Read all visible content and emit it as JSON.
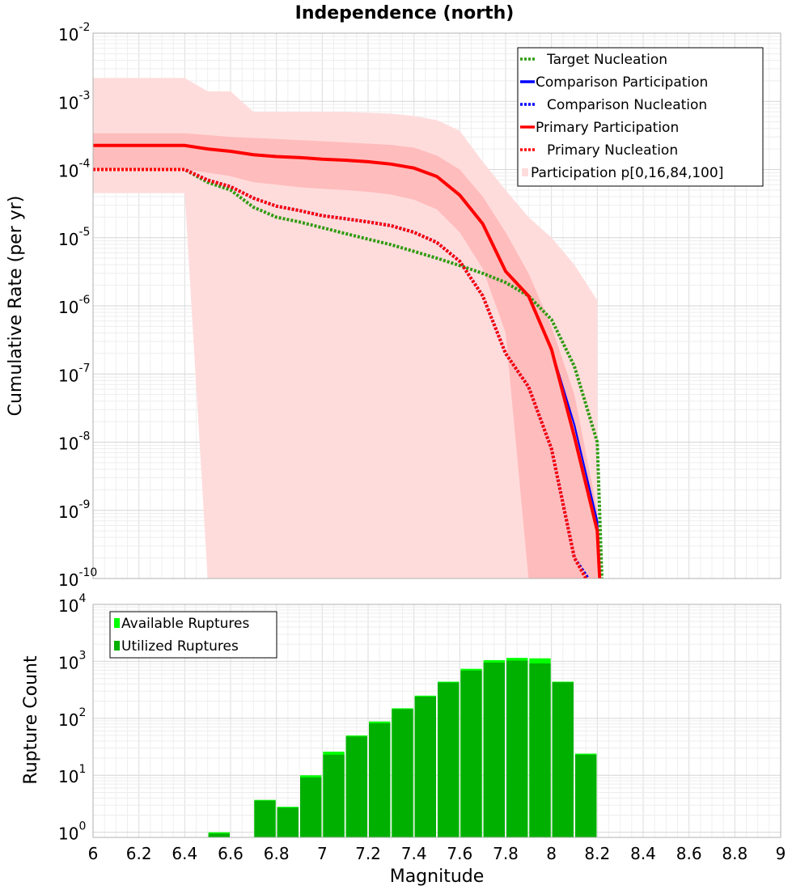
{
  "chart_data": [
    {
      "type": "line",
      "title": "Independence (north)",
      "ylabel": "Cumulative Rate (per yr)",
      "xlabel": "",
      "xlim": [
        6,
        9
      ],
      "ylim_log10": [
        -10,
        -2
      ],
      "yscale": "log",
      "y_tick_base": "10",
      "y_tick_exponents": [
        "-10",
        "-9",
        "-8",
        "-7",
        "-6",
        "-5",
        "-4",
        "-3",
        "-2"
      ],
      "legend_position": "top-right",
      "legend": [
        {
          "label": "Target Nucleation",
          "color": "#2e9b10",
          "style": "dotted"
        },
        {
          "label": "Comparison Participation",
          "color": "#0000ff",
          "style": "solid"
        },
        {
          "label": "Comparison Nucleation",
          "color": "#0000ff",
          "style": "dotted"
        },
        {
          "label": "Primary Participation",
          "color": "#ff0000",
          "style": "solid"
        },
        {
          "label": "Primary Nucleation",
          "color": "#ff0000",
          "style": "dotted"
        },
        {
          "label": "Participation p[0,16,84,100]",
          "color": "#ffdcdc",
          "style": "fill"
        }
      ],
      "series": [
        {
          "name": "Target Nucleation",
          "color": "#2e9b10",
          "style": "dotted",
          "x": [
            6.0,
            6.1,
            6.2,
            6.3,
            6.4,
            6.5,
            6.6,
            6.7,
            6.8,
            6.9,
            7.0,
            7.1,
            7.2,
            7.3,
            7.4,
            7.5,
            7.6,
            7.7,
            7.8,
            7.9,
            8.0,
            8.1,
            8.2,
            8.22
          ],
          "y": [
            0.0001,
            0.0001,
            0.0001,
            0.0001,
            0.0001,
            6.5e-05,
            5e-05,
            2.8e-05,
            2e-05,
            1.7e-05,
            1.4e-05,
            1.15e-05,
            9.5e-06,
            7.9e-06,
            6.3e-06,
            5e-06,
            3.9e-06,
            3e-06,
            2.2e-06,
            1.4e-06,
            6.3e-07,
            1.3e-07,
            1e-08,
            1e-10
          ]
        },
        {
          "name": "Comparison Participation",
          "color": "#0000ff",
          "style": "solid",
          "x": [
            6.0,
            6.1,
            6.2,
            6.3,
            6.4,
            6.5,
            6.6,
            6.7,
            6.8,
            6.9,
            7.0,
            7.1,
            7.2,
            7.3,
            7.4,
            7.5,
            7.6,
            7.7,
            7.8,
            7.9,
            8.0,
            8.1,
            8.2,
            8.21
          ],
          "y": [
            0.000225,
            0.000225,
            0.000225,
            0.000225,
            0.000225,
            0.0002,
            0.000185,
            0.000165,
            0.000155,
            0.00015,
            0.000142,
            0.000137,
            0.00013,
            0.00012,
            0.000105,
            7.9e-05,
            4.2e-05,
            1.6e-05,
            3.2e-06,
            1.4e-06,
            2.3e-07,
            1.8e-08,
            7e-10,
            1e-10
          ]
        },
        {
          "name": "Comparison Nucleation",
          "color": "#0000ff",
          "style": "dotted",
          "x": [
            6.0,
            6.1,
            6.2,
            6.3,
            6.4,
            6.5,
            6.6,
            6.7,
            6.8,
            6.9,
            7.0,
            7.1,
            7.2,
            7.3,
            7.4,
            7.5,
            7.6,
            7.7,
            7.8,
            7.9,
            8.0,
            8.1,
            8.16
          ],
          "y": [
            0.0001,
            0.0001,
            0.0001,
            0.0001,
            0.0001,
            7e-05,
            5.6e-05,
            3.8e-05,
            2.9e-05,
            2.5e-05,
            2.1e-05,
            1.9e-05,
            1.7e-05,
            1.5e-05,
            1.2e-05,
            8.5e-06,
            4.5e-06,
            1.4e-06,
            2e-07,
            6.5e-08,
            8e-09,
            2e-10,
            1e-10
          ]
        },
        {
          "name": "Primary Participation",
          "color": "#ff0000",
          "style": "solid",
          "x": [
            6.0,
            6.1,
            6.2,
            6.3,
            6.4,
            6.5,
            6.6,
            6.7,
            6.8,
            6.9,
            7.0,
            7.1,
            7.2,
            7.3,
            7.4,
            7.5,
            7.6,
            7.7,
            7.8,
            7.9,
            8.0,
            8.1,
            8.2,
            8.21
          ],
          "y": [
            0.000225,
            0.000225,
            0.000225,
            0.000225,
            0.000225,
            0.0002,
            0.000185,
            0.000165,
            0.000155,
            0.00015,
            0.000142,
            0.000137,
            0.00013,
            0.00012,
            0.000105,
            7.9e-05,
            4.2e-05,
            1.6e-05,
            3.2e-06,
            1.4e-06,
            2.3e-07,
            1.2e-08,
            5e-10,
            1e-10
          ]
        },
        {
          "name": "Primary Nucleation",
          "color": "#ff0000",
          "style": "dotted",
          "x": [
            6.0,
            6.1,
            6.2,
            6.3,
            6.4,
            6.5,
            6.6,
            6.7,
            6.8,
            6.9,
            7.0,
            7.1,
            7.2,
            7.3,
            7.4,
            7.5,
            7.6,
            7.7,
            7.8,
            7.9,
            8.0,
            8.1,
            8.15
          ],
          "y": [
            0.0001,
            0.0001,
            0.0001,
            0.0001,
            0.0001,
            7e-05,
            5.6e-05,
            3.8e-05,
            2.9e-05,
            2.5e-05,
            2.1e-05,
            1.9e-05,
            1.7e-05,
            1.5e-05,
            1.2e-05,
            8.5e-06,
            4.5e-06,
            1.4e-06,
            2e-07,
            6.5e-08,
            8e-09,
            2e-10,
            1e-10
          ]
        }
      ],
      "bands": [
        {
          "name": "Participation p[0,100]",
          "color": "#ffdcdc",
          "x": [
            6.0,
            6.4,
            6.5,
            6.6,
            6.7,
            6.8,
            6.9,
            7.0,
            7.1,
            7.2,
            7.3,
            7.4,
            7.5,
            7.6,
            7.7,
            7.8,
            7.9,
            8.0,
            8.1,
            8.2
          ],
          "upper": [
            0.0022,
            0.0022,
            0.0014,
            0.0014,
            0.0007,
            0.0007,
            0.0007,
            0.0007,
            0.0007,
            0.00068,
            0.00066,
            0.00061,
            0.00053,
            0.00037,
            0.00013,
            5e-05,
            2e-05,
            1e-05,
            4e-06,
            1.2e-06
          ],
          "lower": [
            4.5e-05,
            4.5e-05,
            1e-10,
            1e-10,
            1e-10,
            1e-10,
            1e-10,
            1e-10,
            1e-10,
            1e-10,
            1e-10,
            1e-10,
            1e-10,
            1e-10,
            1e-10,
            1e-10,
            1e-10,
            1e-10,
            1e-10,
            1e-10
          ]
        },
        {
          "name": "Participation p[16,84]",
          "color": "#ffbcbc",
          "x": [
            6.0,
            6.4,
            6.5,
            6.6,
            6.7,
            6.8,
            6.9,
            7.0,
            7.1,
            7.2,
            7.3,
            7.4,
            7.5,
            7.6,
            7.7,
            7.8,
            7.9,
            8.0,
            8.1,
            8.2
          ],
          "upper": [
            0.00034,
            0.00034,
            0.00032,
            0.0003,
            0.00029,
            0.00028,
            0.00027,
            0.00026,
            0.00025,
            0.00024,
            0.00023,
            0.00021,
            0.00016,
            0.0001,
            4e-05,
            1.2e-05,
            3e-06,
            5e-07,
            5e-08,
            1e-09
          ],
          "lower": [
            0.0001,
            0.0001,
            9e-05,
            8e-05,
            6.5e-05,
            6e-05,
            5.5e-05,
            5.2e-05,
            5e-05,
            4.7e-05,
            4.3e-05,
            3.6e-05,
            2.6e-05,
            1.2e-05,
            3.5e-06,
            4e-07,
            1e-10,
            1e-10,
            1e-10,
            1e-10
          ]
        }
      ]
    },
    {
      "type": "bar",
      "title": "",
      "ylabel": "Rupture Count",
      "xlabel": "Magnitude",
      "xlim": [
        6,
        9
      ],
      "ylim_log10": [
        -0.09,
        4
      ],
      "yscale": "log",
      "x_tick_labels": [
        "6",
        "6.2",
        "6.4",
        "6.6",
        "6.8",
        "7",
        "7.2",
        "7.4",
        "7.6",
        "7.8",
        "8",
        "8.2",
        "8.4",
        "8.6",
        "8.8",
        "9"
      ],
      "y_tick_base": "10",
      "y_tick_exponents": [
        "0",
        "1",
        "2",
        "3",
        "4"
      ],
      "legend_position": "top-left",
      "legend": [
        {
          "label": "Available Ruptures",
          "color": "#00ff00"
        },
        {
          "label": "Utilized Ruptures",
          "color": "#00b000"
        }
      ],
      "bin_width": 0.1,
      "series": [
        {
          "name": "Available Ruptures",
          "color": "#00ff00",
          "x": [
            6.55,
            6.75,
            6.85,
            6.95,
            7.05,
            7.15,
            7.25,
            7.35,
            7.45,
            7.55,
            7.65,
            7.75,
            7.85,
            7.95,
            8.05,
            8.15
          ],
          "values": [
            1,
            3.7,
            2.8,
            10,
            26,
            50,
            88,
            150,
            250,
            440,
            740,
            1050,
            1150,
            1130,
            440,
            24
          ]
        },
        {
          "name": "Utilized Ruptures",
          "color": "#00b000",
          "x": [
            6.55,
            6.75,
            6.85,
            6.95,
            7.05,
            7.15,
            7.25,
            7.35,
            7.45,
            7.55,
            7.65,
            7.75,
            7.85,
            7.95,
            8.05,
            8.15
          ],
          "values": [
            0.95,
            3.6,
            2.7,
            9.2,
            23,
            48,
            82,
            145,
            240,
            425,
            690,
            950,
            1030,
            920,
            430,
            23
          ]
        }
      ]
    }
  ]
}
